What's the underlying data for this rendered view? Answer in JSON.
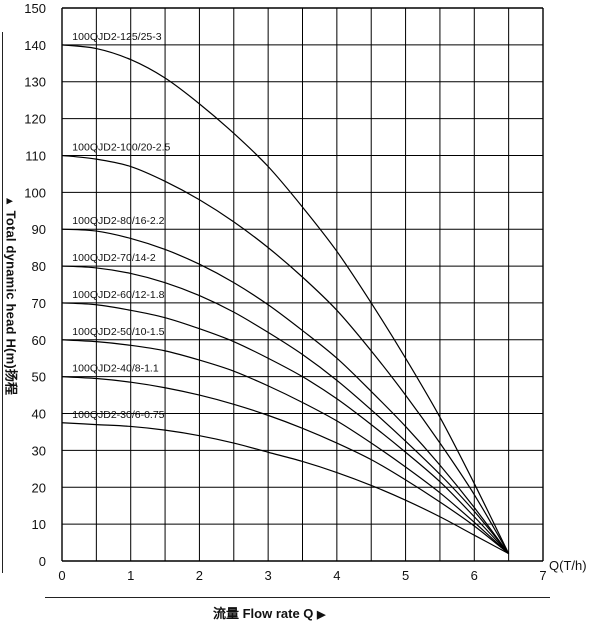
{
  "chart_data": {
    "type": "line",
    "xlabel": "流量 Flow rate Q",
    "xunit": "Q(T/h)",
    "ylabel": "Total dynamic head H(m)扬程",
    "xlim": [
      0,
      7
    ],
    "ylim": [
      0,
      150
    ],
    "xticks": [
      "0",
      "1",
      "2",
      "3",
      "4",
      "5",
      "6",
      "7"
    ],
    "yticks": [
      "0",
      "10",
      "20",
      "30",
      "40",
      "50",
      "60",
      "70",
      "80",
      "90",
      "100",
      "110",
      "120",
      "130",
      "140",
      "150"
    ],
    "grid": true,
    "series": [
      {
        "name": "100QJD2-125/25-3",
        "x": [
          0,
          0.5,
          1,
          1.5,
          2,
          2.5,
          3,
          3.5,
          4,
          4.5,
          5,
          5.5,
          6,
          6.5
        ],
        "y": [
          140,
          139,
          136,
          131,
          124,
          116,
          107,
          96,
          84,
          70,
          55,
          39,
          21,
          2
        ]
      },
      {
        "name": "100QJD2-100/20-2.5",
        "x": [
          0,
          0.5,
          1,
          1.5,
          2,
          2.5,
          3,
          3.5,
          4,
          4.5,
          5,
          5.5,
          6,
          6.5
        ],
        "y": [
          110,
          109,
          107,
          103,
          98,
          92,
          85,
          77,
          68,
          57,
          45,
          32,
          18,
          2
        ]
      },
      {
        "name": "100QJD2-80/16-2.2",
        "x": [
          0,
          0.5,
          1,
          1.5,
          2,
          2.5,
          3,
          3.5,
          4,
          4.5,
          5,
          5.5,
          6,
          6.5
        ],
        "y": [
          90,
          89.5,
          87.5,
          84.5,
          80.5,
          75.5,
          69.5,
          62.5,
          55,
          46,
          36.5,
          26,
          14.5,
          2
        ]
      },
      {
        "name": "100QJD2-70/14-2",
        "x": [
          0,
          0.5,
          1,
          1.5,
          2,
          2.5,
          3,
          3.5,
          4,
          4.5,
          5,
          5.5,
          6,
          6.5
        ],
        "y": [
          80,
          79.5,
          78,
          75.5,
          72,
          67.5,
          62,
          56,
          49,
          41,
          32.5,
          23.5,
          13.5,
          2
        ]
      },
      {
        "name": "100QJD2-60/12-1.8",
        "x": [
          0,
          0.5,
          1,
          1.5,
          2,
          2.5,
          3,
          3.5,
          4,
          4.5,
          5,
          5.5,
          6,
          6.5
        ],
        "y": [
          70,
          69.5,
          68,
          66,
          63,
          59.5,
          55,
          50,
          44,
          37,
          29.5,
          21.5,
          12,
          2
        ]
      },
      {
        "name": "100QJD2-50/10-1.5",
        "x": [
          0,
          0.5,
          1,
          1.5,
          2,
          2.5,
          3,
          3.5,
          4,
          4.5,
          5,
          5.5,
          6,
          6.5
        ],
        "y": [
          60,
          59.5,
          58.5,
          57,
          54.5,
          51.5,
          47.5,
          43,
          38,
          32,
          25.5,
          18.5,
          10.5,
          2
        ]
      },
      {
        "name": "100QJD2-40/8-1.1",
        "x": [
          0,
          0.5,
          1,
          1.5,
          2,
          2.5,
          3,
          3.5,
          4,
          4.5,
          5,
          5.5,
          6,
          6.5
        ],
        "y": [
          50,
          49.5,
          48.5,
          47,
          45,
          42.5,
          39.5,
          36,
          32,
          27.5,
          22,
          16,
          9.5,
          2
        ]
      },
      {
        "name": "100QJD2-30/6-0.75",
        "x": [
          0,
          0.5,
          1,
          1.5,
          2,
          2.5,
          3,
          3.5,
          4,
          4.5,
          5,
          5.5,
          6,
          6.5
        ],
        "y": [
          37.5,
          37,
          36.5,
          35.5,
          34,
          32,
          29.5,
          27,
          24,
          20.5,
          16.5,
          12,
          7,
          2
        ]
      }
    ]
  }
}
